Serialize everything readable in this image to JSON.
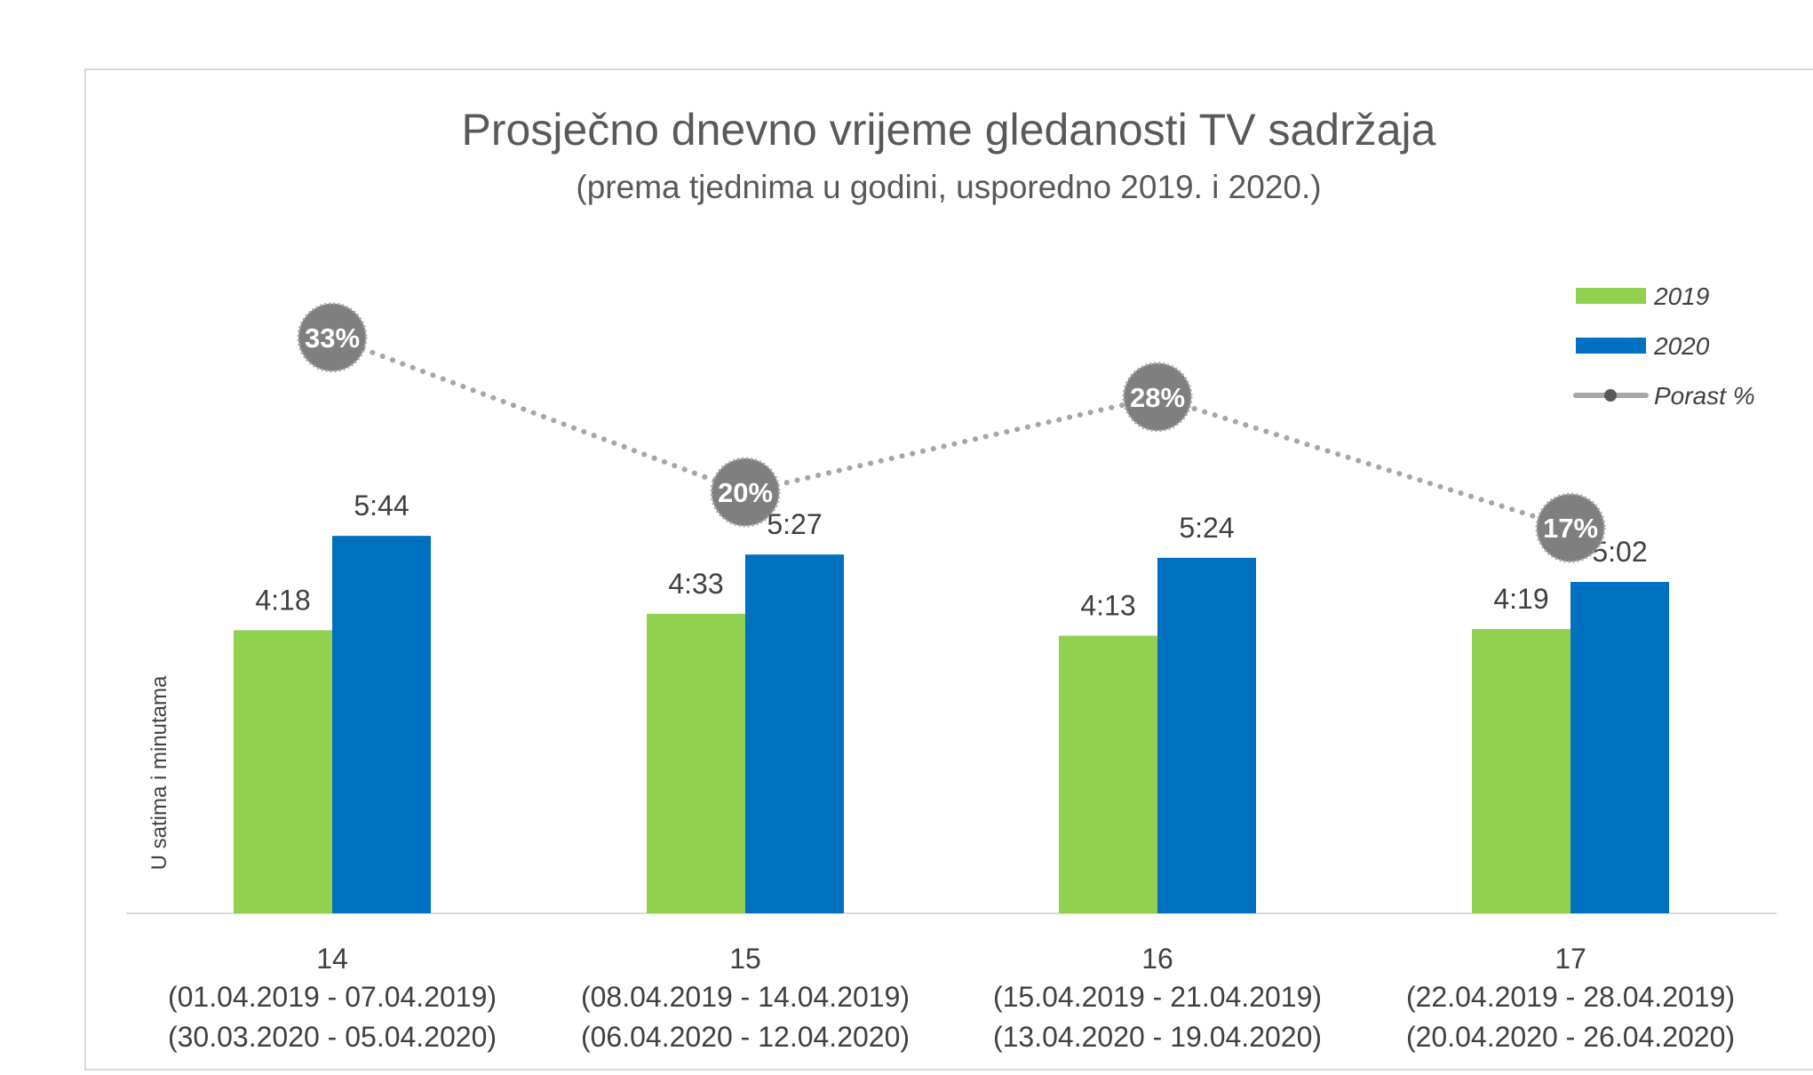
{
  "chart_data": {
    "type": "bar",
    "title": "Prosječno dnevno vrijeme gledanosti TV sadržaja",
    "subtitle": "(prema tjednima u godini, usporedno 2019. i 2020.)",
    "ylabel": "U satima i minutama",
    "xlabel": "",
    "ylim": [
      0,
      420
    ],
    "categories": [
      {
        "week": "14",
        "range2019": "(01.04.2019 - 07.04.2019)",
        "range2020": "(30.03.2020 - 05.04.2020)"
      },
      {
        "week": "15",
        "range2019": "(08.04.2019 - 14.04.2019)",
        "range2020": "(06.04.2020 - 12.04.2020)"
      },
      {
        "week": "16",
        "range2019": "(15.04.2019 - 21.04.2019)",
        "range2020": "(13.04.2020 - 19.04.2020)"
      },
      {
        "week": "17",
        "range2019": "(22.04.2019 - 28.04.2019)",
        "range2020": "(20.04.2020 - 26.04.2020)"
      }
    ],
    "series": [
      {
        "name": "2019",
        "color": "#92d050",
        "labels": [
          "4:18",
          "4:33",
          "4:13",
          "4:19"
        ],
        "values_minutes": [
          258,
          273,
          253,
          259
        ]
      },
      {
        "name": "2020",
        "color": "#0070c0",
        "labels": [
          "5:44",
          "5:27",
          "5:24",
          "5:02"
        ],
        "values_minutes": [
          344,
          327,
          324,
          302
        ]
      }
    ],
    "growth": {
      "name": "Porast %",
      "color": "#7f7f7f",
      "values": [
        33,
        20,
        28,
        17
      ],
      "labels": [
        "33%",
        "20%",
        "28%",
        "17%"
      ]
    },
    "legend_position": "top-right",
    "grid": false
  }
}
